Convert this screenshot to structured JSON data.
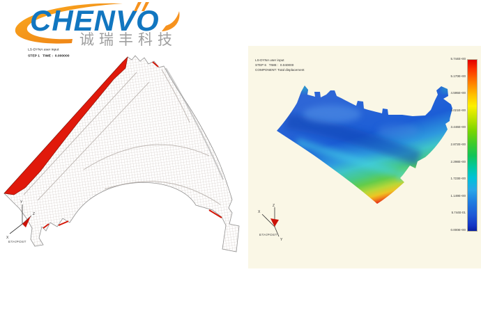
{
  "logo": {
    "brand": "CHENVO",
    "subtitle": "诚瑞丰科技",
    "brand_color": "#1176c0",
    "accent_color": "#f6921e"
  },
  "left_viewport": {
    "header_line1": "LS-DYNA user input",
    "header_line2": "STEP 1   TIME :  0.000000",
    "software_label": "ETA/POST",
    "axis": {
      "up": "Y",
      "left": "X",
      "right": "Z"
    }
  },
  "right_viewport": {
    "header_line1": "LS-DYNA user input",
    "header_line2": "STEP 6   TIME :  0.040000",
    "header_line3": "COMPONENT: Total displacement",
    "software_label": "ETA/POST",
    "axis": {
      "up": "Z",
      "left": "X",
      "down": "Y"
    },
    "colorbar": {
      "labels": [
        "5.744E+00",
        "5.170E+00",
        "4.595E+00",
        "4.021E+00",
        "3.446E+00",
        "2.872E+00",
        "2.298E+00",
        "1.723E+00",
        "1.149E+00",
        "5.744E-01",
        "0.000E+00"
      ]
    }
  }
}
